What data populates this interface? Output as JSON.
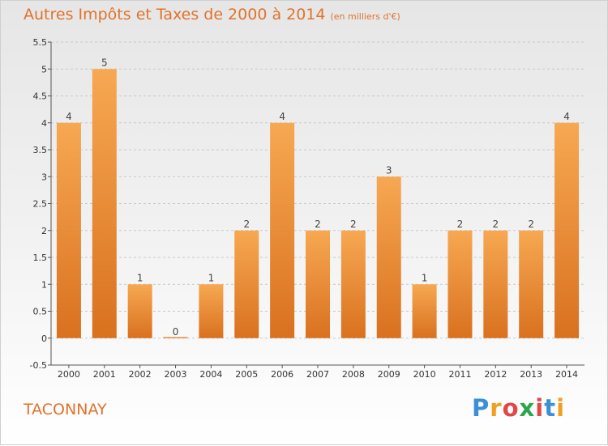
{
  "header": {
    "title": "Autres Impôts et Taxes de 2000 à 2014",
    "unit": "(en milliers d'€)"
  },
  "commune": "TACONNAY",
  "brand": {
    "letters": [
      "P",
      "r",
      "o",
      "x",
      "i",
      "t",
      "i"
    ],
    "colors": [
      "#3a8fd6",
      "#f0a020",
      "#e04848",
      "#2aa64a",
      "#e04848",
      "#3a8fd6",
      "#f0a020"
    ]
  },
  "colors": {
    "bar_light": "#f7a852",
    "bar_dark": "#d9711f",
    "accent": "#e0732b"
  },
  "chart_data": {
    "type": "bar",
    "title": "Autres Impôts et Taxes de 2000 à 2014",
    "xlabel": "",
    "ylabel": "",
    "categories": [
      "2000",
      "2001",
      "2002",
      "2003",
      "2004",
      "2005",
      "2006",
      "2007",
      "2008",
      "2009",
      "2010",
      "2011",
      "2012",
      "2013",
      "2014"
    ],
    "values": [
      4,
      5,
      1,
      0,
      1,
      2,
      4,
      2,
      2,
      3,
      1,
      2,
      2,
      2,
      4
    ],
    "data_labels": [
      "4",
      "5",
      "1",
      "0",
      "1",
      "2",
      "4",
      "2",
      "2",
      "3",
      "1",
      "2",
      "2",
      "2",
      "4"
    ],
    "y_ticks": [
      -0.5,
      0,
      0.5,
      1,
      1.5,
      2,
      2.5,
      3,
      3.5,
      4,
      4.5,
      5,
      5.5
    ],
    "y_tick_labels": [
      "-0.5",
      "0",
      "0.5",
      "1",
      "1.5",
      "2",
      "2.5",
      "3",
      "3.5",
      "4",
      "4.5",
      "5",
      "5.5"
    ],
    "ylim": [
      -0.5,
      5.5
    ],
    "grid": "horizontal dashed",
    "legend": "none"
  }
}
